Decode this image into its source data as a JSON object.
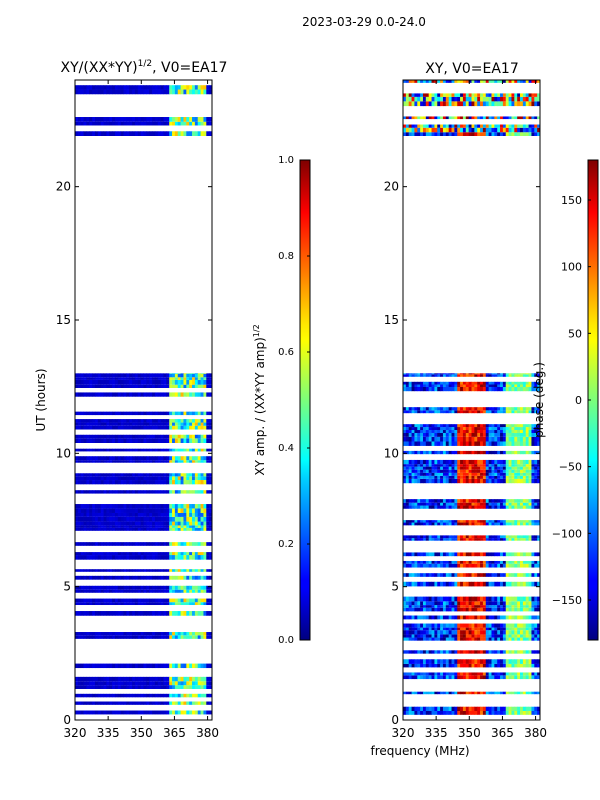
{
  "figure": {
    "suptitle": "2023-03-29 0.0-24.0",
    "xlabel": "frequency (MHz)"
  },
  "chart_data": [
    {
      "type": "heatmap",
      "panel": "left",
      "title_main": "XY/(XX*YY)",
      "title_sup": "1/2",
      "title_rest": ", V0=EA17",
      "xlabel": "",
      "ylabel": "UT (hours)",
      "xlim": [
        320,
        382
      ],
      "ylim": [
        0,
        24
      ],
      "xticks": [
        320,
        335,
        350,
        365,
        380
      ],
      "yticks": [
        0,
        5,
        10,
        15,
        20
      ],
      "colorbar": {
        "label_main": "XY amp. / (XX*YY amp)",
        "label_sup": "1/2",
        "range": [
          0.0,
          1.0
        ],
        "ticks": [
          "0.0",
          "0.2",
          "0.4",
          "0.6",
          "0.8",
          "1.0"
        ],
        "colormap": "jet"
      },
      "data_time_ranges_hours": [
        [
          0.0,
          13.0
        ],
        [
          21.9,
          24.0
        ]
      ],
      "bright_freq_band_mhz": [
        363,
        380
      ],
      "typical_values": {
        "background": 0.05,
        "band": 0.45
      }
    },
    {
      "type": "heatmap",
      "panel": "right",
      "title_main": "XY, V0=EA17",
      "xlabel": "",
      "ylabel": "",
      "xlim": [
        320,
        382
      ],
      "ylim": [
        0,
        24
      ],
      "xticks": [
        320,
        335,
        350,
        365,
        380
      ],
      "yticks": [
        0,
        5,
        10,
        15,
        20
      ],
      "colorbar": {
        "label_main": "phase (deg.)",
        "range": [
          -180,
          180
        ],
        "ticks": [
          "150",
          "100",
          "50",
          "0",
          "−50",
          "−100",
          "−150"
        ],
        "tick_values": [
          150,
          100,
          50,
          0,
          -50,
          -100,
          -150
        ],
        "colormap": "jet"
      },
      "data_time_ranges_hours": [
        [
          0.0,
          13.0
        ],
        [
          21.9,
          24.0
        ]
      ],
      "phase_features": {
        "high_phase_band_mhz": [
          345,
          358
        ],
        "high_phase_deg": 160,
        "background_deg": -150
      }
    }
  ]
}
